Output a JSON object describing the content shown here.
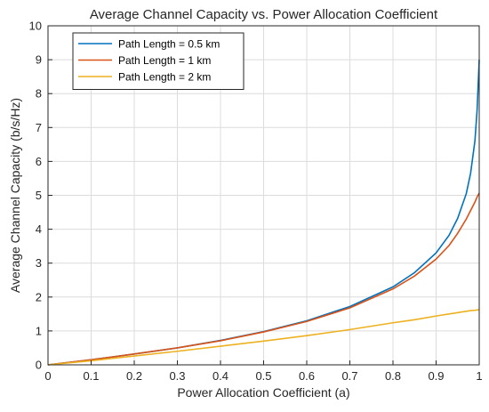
{
  "chart_data": {
    "type": "line",
    "title": "Average Channel Capacity vs. Power Allocation Coefficient",
    "xlabel": "Power Allocation Coefficient (a)",
    "ylabel": "Average Channel Capacity (b/s/Hz)",
    "xlim": [
      0,
      1
    ],
    "ylim": [
      0,
      10
    ],
    "xticks": [
      "0",
      "0.1",
      "0.2",
      "0.3",
      "0.4",
      "0.5",
      "0.6",
      "0.7",
      "0.8",
      "0.9",
      "1"
    ],
    "yticks": [
      "0",
      "1",
      "2",
      "3",
      "4",
      "5",
      "6",
      "7",
      "8",
      "9",
      "10"
    ],
    "grid": true,
    "legend_position": "top-left",
    "x": [
      0,
      0.1,
      0.2,
      0.3,
      0.4,
      0.5,
      0.6,
      0.7,
      0.8,
      0.85,
      0.9,
      0.93,
      0.95,
      0.97,
      0.98,
      0.99,
      0.995,
      1.0
    ],
    "series": [
      {
        "name": "Path Length = 0.5 km",
        "color": "#0072BD",
        "values": [
          0,
          0.15,
          0.32,
          0.5,
          0.72,
          0.98,
          1.3,
          1.72,
          2.3,
          2.72,
          3.3,
          3.82,
          4.32,
          5.05,
          5.65,
          6.6,
          7.5,
          9.0
        ]
      },
      {
        "name": "Path Length = 1 km",
        "color": "#D95319",
        "values": [
          0,
          0.15,
          0.32,
          0.5,
          0.71,
          0.97,
          1.28,
          1.68,
          2.24,
          2.62,
          3.12,
          3.52,
          3.88,
          4.3,
          4.55,
          4.8,
          4.95,
          5.07
        ]
      },
      {
        "name": "Path Length = 2 km",
        "color": "#EDB120",
        "values": [
          0,
          0.12,
          0.26,
          0.4,
          0.55,
          0.7,
          0.86,
          1.04,
          1.24,
          1.33,
          1.44,
          1.5,
          1.54,
          1.58,
          1.6,
          1.61,
          1.62,
          1.63
        ]
      }
    ]
  }
}
